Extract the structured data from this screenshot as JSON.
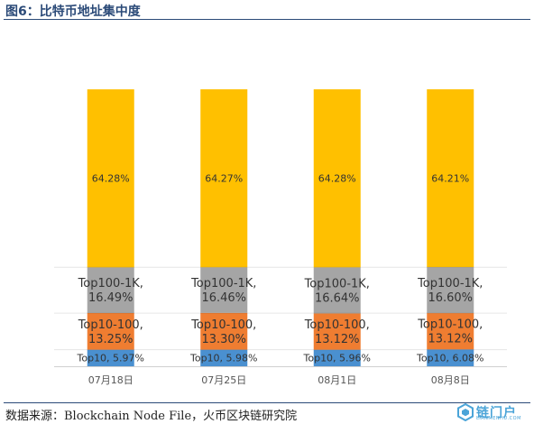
{
  "header": {
    "title": "图6：比特币地址集中度"
  },
  "footer": {
    "source": "数据来源：Blockchain Node File，火币区块链研究院"
  },
  "logo": {
    "text": "链门户",
    "subtext": "LIANMENHU.COM",
    "color": "#4aa4d8"
  },
  "colors": {
    "top10": "#4a90d0",
    "top10_100": "#ef7d31",
    "top100_1k": "#a5a5a5",
    "rest": "#ffc000",
    "title": "#2b4a78"
  },
  "chart_data": {
    "type": "bar",
    "stacked": true,
    "categories": [
      "07月18日",
      "07月25日",
      "08月1日",
      "08月8日"
    ],
    "series": [
      {
        "key": "top10",
        "values": [
          5.97,
          5.98,
          5.96,
          6.08
        ],
        "labels": [
          "Top10, 5.97%",
          "Top10, 5.98%",
          "Top10, 5.96%",
          "Top10, 6.08%"
        ]
      },
      {
        "key": "top10_100",
        "values": [
          13.25,
          13.3,
          13.12,
          13.12
        ],
        "labels": [
          "Top10-100,\n13.25%",
          "Top10-100,\n13.30%",
          "Top10-100,\n13.12%",
          "Top10-100,\n13.12%"
        ]
      },
      {
        "key": "top100_1k",
        "values": [
          16.49,
          16.46,
          16.64,
          16.6
        ],
        "labels": [
          "Top100-1K,\n16.49%",
          "Top100-1K,\n16.46%",
          "Top100-1K,\n16.64%",
          "Top100-1K,\n16.60%"
        ]
      },
      {
        "key": "rest",
        "values": [
          64.28,
          64.27,
          64.28,
          64.21
        ],
        "labels": [
          "64.28%",
          "64.27%",
          "64.28%",
          "64.21%"
        ]
      }
    ],
    "ylim": [
      0,
      100
    ],
    "grid": false,
    "legend": "none"
  }
}
